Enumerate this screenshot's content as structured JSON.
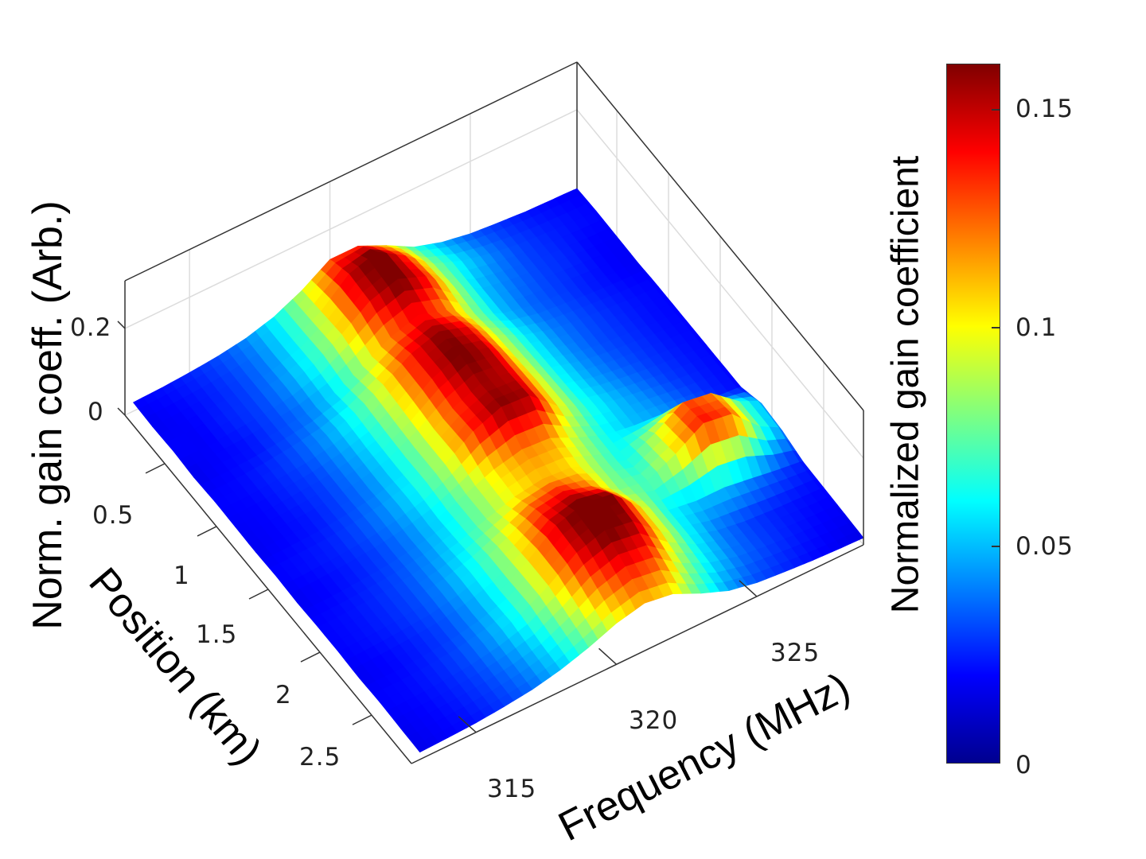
{
  "chart_data": {
    "type": "surface3d",
    "zlabel": "Norm. gain coeff. (Arb.)",
    "ylabel": "Position (km)",
    "xlabel": "Frequency (MHz)",
    "colorbar_label": "Normalized gain coefficient",
    "colormap": "jet",
    "xlim": [
      312.7,
      328.8
    ],
    "ylim": [
      0.115,
      2.885
    ],
    "zlim": [
      0,
      0.31
    ],
    "clim": [
      0,
      0.16
    ],
    "grid": true,
    "x_ticks": [
      "315",
      "320",
      "325"
    ],
    "x_tick_values": [
      315,
      320,
      325
    ],
    "y_ticks": [
      "0.5",
      "1",
      "1.5",
      "2",
      "2.5"
    ],
    "y_tick_values": [
      0.5,
      1,
      1.5,
      2,
      2.5
    ],
    "z_ticks": [
      "0",
      "0.2"
    ],
    "z_tick_values": [
      0,
      0.2
    ],
    "colorbar_ticks": [
      "0",
      "0.05",
      "0.1",
      "0.15"
    ],
    "colorbar_tick_values": [
      0,
      0.05,
      0.1,
      0.15
    ],
    "frequency_mhz": [
      313,
      314,
      315,
      316,
      317,
      318,
      319,
      320,
      321,
      322,
      323,
      324,
      325,
      326,
      327,
      328,
      329
    ],
    "position_km": [
      0.1,
      0.3,
      0.5,
      0.7,
      0.9,
      1.1,
      1.3,
      1.5,
      1.7,
      1.9,
      2.1,
      2.3,
      2.5,
      2.7,
      2.9
    ],
    "gain": [
      [
        0.02,
        0.022,
        0.026,
        0.032,
        0.042,
        0.06,
        0.09,
        0.13,
        0.13,
        0.1,
        0.065,
        0.045,
        0.033,
        0.027,
        0.022,
        0.02,
        0.018
      ],
      [
        0.018,
        0.02,
        0.024,
        0.03,
        0.04,
        0.06,
        0.095,
        0.15,
        0.17,
        0.13,
        0.08,
        0.055,
        0.04,
        0.03,
        0.025,
        0.022,
        0.02
      ],
      [
        0.02,
        0.019,
        0.025,
        0.03,
        0.042,
        0.062,
        0.1,
        0.145,
        0.165,
        0.14,
        0.085,
        0.05,
        0.038,
        0.03,
        0.026,
        0.02,
        0.019
      ],
      [
        0.017,
        0.02,
        0.022,
        0.03,
        0.038,
        0.055,
        0.085,
        0.12,
        0.14,
        0.12,
        0.08,
        0.05,
        0.036,
        0.03,
        0.024,
        0.02,
        0.018
      ],
      [
        0.02,
        0.021,
        0.026,
        0.033,
        0.045,
        0.065,
        0.1,
        0.14,
        0.16,
        0.14,
        0.09,
        0.058,
        0.04,
        0.032,
        0.026,
        0.022,
        0.02
      ],
      [
        0.019,
        0.02,
        0.025,
        0.03,
        0.042,
        0.06,
        0.095,
        0.14,
        0.165,
        0.15,
        0.095,
        0.06,
        0.042,
        0.032,
        0.027,
        0.022,
        0.02
      ],
      [
        0.018,
        0.02,
        0.023,
        0.03,
        0.04,
        0.058,
        0.09,
        0.13,
        0.155,
        0.15,
        0.1,
        0.062,
        0.045,
        0.035,
        0.028,
        0.023,
        0.02
      ],
      [
        0.02,
        0.022,
        0.025,
        0.032,
        0.043,
        0.06,
        0.09,
        0.135,
        0.16,
        0.155,
        0.1,
        0.065,
        0.05,
        0.04,
        0.03,
        0.024,
        0.02
      ],
      [
        0.018,
        0.02,
        0.024,
        0.03,
        0.04,
        0.055,
        0.08,
        0.105,
        0.12,
        0.115,
        0.085,
        0.06,
        0.05,
        0.045,
        0.035,
        0.025,
        0.02
      ],
      [
        0.02,
        0.022,
        0.026,
        0.032,
        0.042,
        0.058,
        0.08,
        0.1,
        0.11,
        0.105,
        0.08,
        0.06,
        0.09,
        0.13,
        0.12,
        0.07,
        0.04
      ],
      [
        0.02,
        0.022,
        0.026,
        0.032,
        0.045,
        0.065,
        0.095,
        0.13,
        0.14,
        0.12,
        0.08,
        0.07,
        0.1,
        0.14,
        0.13,
        0.07,
        0.035
      ],
      [
        0.018,
        0.02,
        0.024,
        0.03,
        0.042,
        0.062,
        0.1,
        0.15,
        0.17,
        0.16,
        0.1,
        0.06,
        0.05,
        0.05,
        0.04,
        0.03,
        0.022
      ],
      [
        0.02,
        0.021,
        0.025,
        0.032,
        0.045,
        0.065,
        0.1,
        0.145,
        0.165,
        0.155,
        0.1,
        0.06,
        0.04,
        0.03,
        0.025,
        0.022,
        0.02
      ],
      [
        0.018,
        0.02,
        0.024,
        0.03,
        0.04,
        0.055,
        0.085,
        0.12,
        0.14,
        0.13,
        0.085,
        0.055,
        0.038,
        0.03,
        0.024,
        0.02,
        0.018
      ],
      [
        0.017,
        0.019,
        0.022,
        0.028,
        0.036,
        0.05,
        0.07,
        0.095,
        0.11,
        0.1,
        0.07,
        0.045,
        0.032,
        0.026,
        0.021,
        0.018,
        0.016
      ]
    ]
  }
}
